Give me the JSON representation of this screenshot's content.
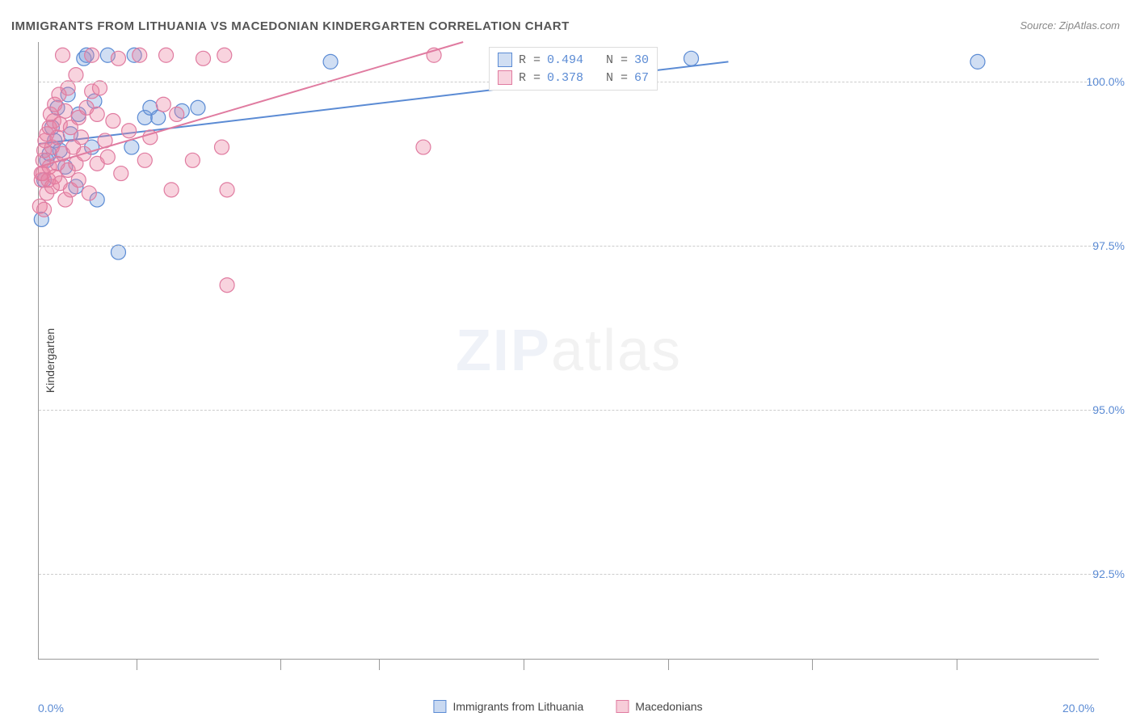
{
  "title": "IMMIGRANTS FROM LITHUANIA VS MACEDONIAN KINDERGARTEN CORRELATION CHART",
  "source": "Source: ZipAtlas.com",
  "ylabel": "Kindergarten",
  "watermark_a": "ZIP",
  "watermark_b": "atlas",
  "chart": {
    "type": "scatter",
    "xlim": [
      0.0,
      20.0
    ],
    "ylim": [
      91.2,
      100.6
    ],
    "x_ticks": [
      0.0,
      20.0
    ],
    "x_tick_labels": [
      "0.0%",
      "20.0%"
    ],
    "x_tick_minor": [
      1.84,
      4.56,
      6.42,
      9.14,
      11.86,
      14.58,
      17.3
    ],
    "y_ticks": [
      92.5,
      95.0,
      97.5,
      100.0
    ],
    "y_tick_labels": [
      "92.5%",
      "95.0%",
      "97.5%",
      "100.0%"
    ],
    "grid_color": "#cccccc",
    "axis_color": "#999999",
    "background": "#ffffff",
    "series": [
      {
        "name": "Immigrants from Lithuania",
        "color_fill": "rgba(120, 160, 220, 0.35)",
        "color_stroke": "#5b8bd4",
        "marker_radius": 9,
        "R": "0.494",
        "N": "30",
        "trend": {
          "x1": 0.0,
          "y1": 99.05,
          "x2": 13.0,
          "y2": 100.3
        },
        "points": [
          [
            0.05,
            97.9
          ],
          [
            0.1,
            98.5
          ],
          [
            0.15,
            98.8
          ],
          [
            0.2,
            98.9
          ],
          [
            0.25,
            99.3
          ],
          [
            0.3,
            99.1
          ],
          [
            0.35,
            99.6
          ],
          [
            0.4,
            98.95
          ],
          [
            0.5,
            98.7
          ],
          [
            0.55,
            99.8
          ],
          [
            0.6,
            99.2
          ],
          [
            0.7,
            98.4
          ],
          [
            0.75,
            99.5
          ],
          [
            0.85,
            100.35
          ],
          [
            0.9,
            100.4
          ],
          [
            1.0,
            99.0
          ],
          [
            1.05,
            99.7
          ],
          [
            1.1,
            98.2
          ],
          [
            1.3,
            100.4
          ],
          [
            1.5,
            97.4
          ],
          [
            1.75,
            99.0
          ],
          [
            1.8,
            100.4
          ],
          [
            2.0,
            99.45
          ],
          [
            2.1,
            99.6
          ],
          [
            2.25,
            99.45
          ],
          [
            2.7,
            99.55
          ],
          [
            3.0,
            99.6
          ],
          [
            5.5,
            100.3
          ],
          [
            12.3,
            100.35
          ],
          [
            17.7,
            100.3
          ]
        ]
      },
      {
        "name": "Macedonians",
        "color_fill": "rgba(235, 130, 160, 0.35)",
        "color_stroke": "#e07ba0",
        "marker_radius": 9,
        "R": "0.378",
        "N": "67",
        "trend": {
          "x1": 0.0,
          "y1": 98.7,
          "x2": 8.0,
          "y2": 100.6
        },
        "points": [
          [
            0.02,
            98.1
          ],
          [
            0.05,
            98.5
          ],
          [
            0.05,
            98.6
          ],
          [
            0.08,
            98.6
          ],
          [
            0.08,
            98.8
          ],
          [
            0.1,
            98.05
          ],
          [
            0.1,
            98.95
          ],
          [
            0.12,
            99.1
          ],
          [
            0.15,
            98.3
          ],
          [
            0.15,
            99.2
          ],
          [
            0.18,
            98.5
          ],
          [
            0.2,
            98.7
          ],
          [
            0.2,
            99.3
          ],
          [
            0.22,
            99.5
          ],
          [
            0.25,
            98.4
          ],
          [
            0.25,
            99.0
          ],
          [
            0.28,
            99.4
          ],
          [
            0.3,
            98.55
          ],
          [
            0.3,
            99.65
          ],
          [
            0.35,
            98.75
          ],
          [
            0.35,
            99.15
          ],
          [
            0.38,
            99.8
          ],
          [
            0.4,
            98.45
          ],
          [
            0.4,
            99.35
          ],
          [
            0.45,
            98.9
          ],
          [
            0.45,
            100.4
          ],
          [
            0.5,
            98.2
          ],
          [
            0.5,
            99.55
          ],
          [
            0.55,
            98.65
          ],
          [
            0.55,
            99.9
          ],
          [
            0.6,
            98.35
          ],
          [
            0.6,
            99.3
          ],
          [
            0.65,
            99.0
          ],
          [
            0.7,
            98.75
          ],
          [
            0.7,
            100.1
          ],
          [
            0.75,
            98.5
          ],
          [
            0.75,
            99.45
          ],
          [
            0.8,
            99.15
          ],
          [
            0.85,
            98.9
          ],
          [
            0.9,
            99.6
          ],
          [
            0.95,
            98.3
          ],
          [
            1.0,
            99.85
          ],
          [
            1.0,
            100.4
          ],
          [
            1.1,
            98.75
          ],
          [
            1.1,
            99.5
          ],
          [
            1.15,
            99.9
          ],
          [
            1.25,
            99.1
          ],
          [
            1.3,
            98.85
          ],
          [
            1.4,
            99.4
          ],
          [
            1.5,
            100.35
          ],
          [
            1.55,
            98.6
          ],
          [
            1.7,
            99.25
          ],
          [
            1.9,
            100.4
          ],
          [
            2.0,
            98.8
          ],
          [
            2.1,
            99.15
          ],
          [
            2.35,
            99.65
          ],
          [
            2.4,
            100.4
          ],
          [
            2.5,
            98.35
          ],
          [
            2.6,
            99.5
          ],
          [
            2.9,
            98.8
          ],
          [
            3.1,
            100.35
          ],
          [
            3.45,
            99.0
          ],
          [
            3.5,
            100.4
          ],
          [
            3.55,
            98.35
          ],
          [
            3.55,
            96.9
          ],
          [
            7.25,
            99.0
          ],
          [
            7.45,
            100.4
          ]
        ]
      }
    ]
  },
  "legend": {
    "items": [
      {
        "label": "Immigrants from Lithuania",
        "fill": "rgba(120,160,220,0.4)",
        "stroke": "#5b8bd4"
      },
      {
        "label": "Macedonians",
        "fill": "rgba(235,130,160,0.4)",
        "stroke": "#e07ba0"
      }
    ]
  },
  "stats_labels": {
    "r": "R =",
    "n": "N ="
  }
}
